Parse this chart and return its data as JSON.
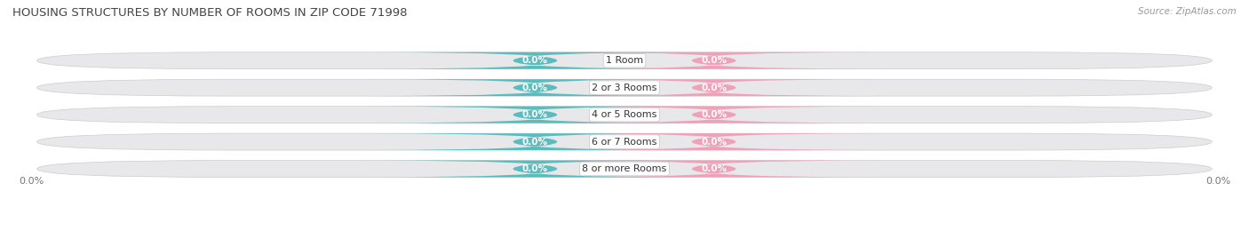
{
  "title": "HOUSING STRUCTURES BY NUMBER OF ROOMS IN ZIP CODE 71998",
  "source": "Source: ZipAtlas.com",
  "categories": [
    "1 Room",
    "2 or 3 Rooms",
    "4 or 5 Rooms",
    "6 or 7 Rooms",
    "8 or more Rooms"
  ],
  "owner_values": [
    0.0,
    0.0,
    0.0,
    0.0,
    0.0
  ],
  "renter_values": [
    0.0,
    0.0,
    0.0,
    0.0,
    0.0
  ],
  "owner_color": "#5bbcbd",
  "renter_color": "#f0a0b8",
  "bar_bg_color": "#e8e8ea",
  "row_sep_color": "#d0d0d0",
  "label_color": "#555555",
  "title_color": "#444444",
  "white": "#ffffff",
  "axis_label_left": "0.0%",
  "axis_label_right": "0.0%",
  "figsize": [
    14.06,
    2.69
  ],
  "dpi": 100
}
